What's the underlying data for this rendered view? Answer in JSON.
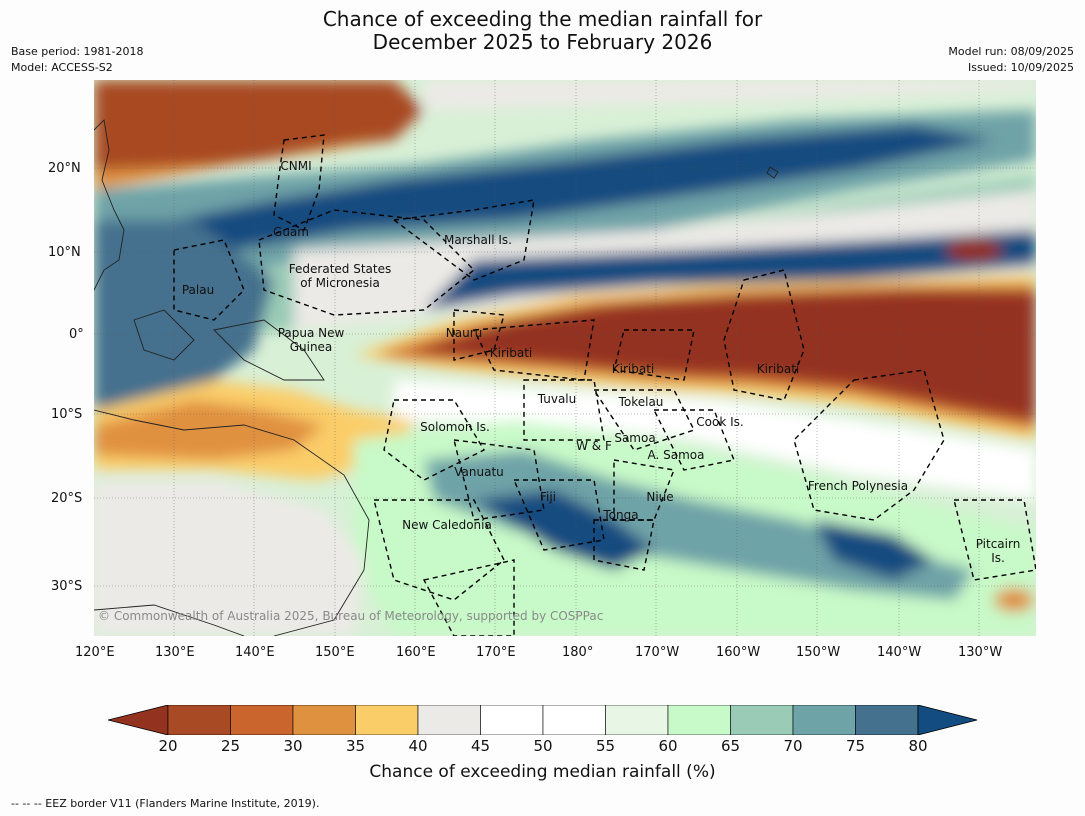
{
  "header": {
    "title_line1": "Chance of exceeding the median rainfall for",
    "title_line2": "December 2025 to February 2026",
    "base_period": "Base period: 1981-2018",
    "model": "Model: ACCESS-S2",
    "model_run": "Model run: 08/09/2025",
    "issued": "Issued: 10/09/2025"
  },
  "map": {
    "credit": "© Commonwealth of Australia 2025, Bureau of Meteorology, supported by COSPPac",
    "lon_labels": [
      "120°E",
      "130°E",
      "140°E",
      "150°E",
      "160°E",
      "170°E",
      "180°",
      "170°W",
      "160°W",
      "150°W",
      "140°W",
      "130°W"
    ],
    "lat_labels": [
      "20°N",
      "10°N",
      "0°",
      "10°S",
      "20°S",
      "30°S"
    ],
    "regions": [
      {
        "name": "CNMI"
      },
      {
        "name": "Guam"
      },
      {
        "name": "Marshall Is."
      },
      {
        "name": "Federated States\nof Micronesia"
      },
      {
        "name": "Palau"
      },
      {
        "name": "Papua New\nGuinea"
      },
      {
        "name": "Nauru"
      },
      {
        "name": "Kiribati"
      },
      {
        "name": "Kiribati"
      },
      {
        "name": "Kiribati"
      },
      {
        "name": "Tuvalu"
      },
      {
        "name": "Tokelau"
      },
      {
        "name": "Cook Is."
      },
      {
        "name": "Solomon Is."
      },
      {
        "name": "Samoa"
      },
      {
        "name": "W & F"
      },
      {
        "name": "A. Samoa"
      },
      {
        "name": "Vanuatu"
      },
      {
        "name": "Fiji"
      },
      {
        "name": "Niue"
      },
      {
        "name": "Tonga"
      },
      {
        "name": "French Polynesia"
      },
      {
        "name": "New Caledonia"
      },
      {
        "name": "Pitcairn\nIs."
      }
    ]
  },
  "colorbar": {
    "ticks": [
      "20",
      "25",
      "30",
      "35",
      "40",
      "45",
      "50",
      "55",
      "60",
      "65",
      "70",
      "75",
      "80"
    ],
    "colors": [
      "#a84a23",
      "#c9652d",
      "#e0913f",
      "#fbcd69",
      "#eceae6",
      "#ffffff",
      "#ffffff",
      "#e8f6e6",
      "#c8f9c8",
      "#99cbb6",
      "#6ea3a7",
      "#44718e"
    ],
    "low_color": "#943220",
    "high_color": "#134c80",
    "label": "Chance of exceeding median rainfall (%)"
  },
  "footnote": "--  --  -- EEZ border V11 (Flanders Marine Institute, 2019)."
}
